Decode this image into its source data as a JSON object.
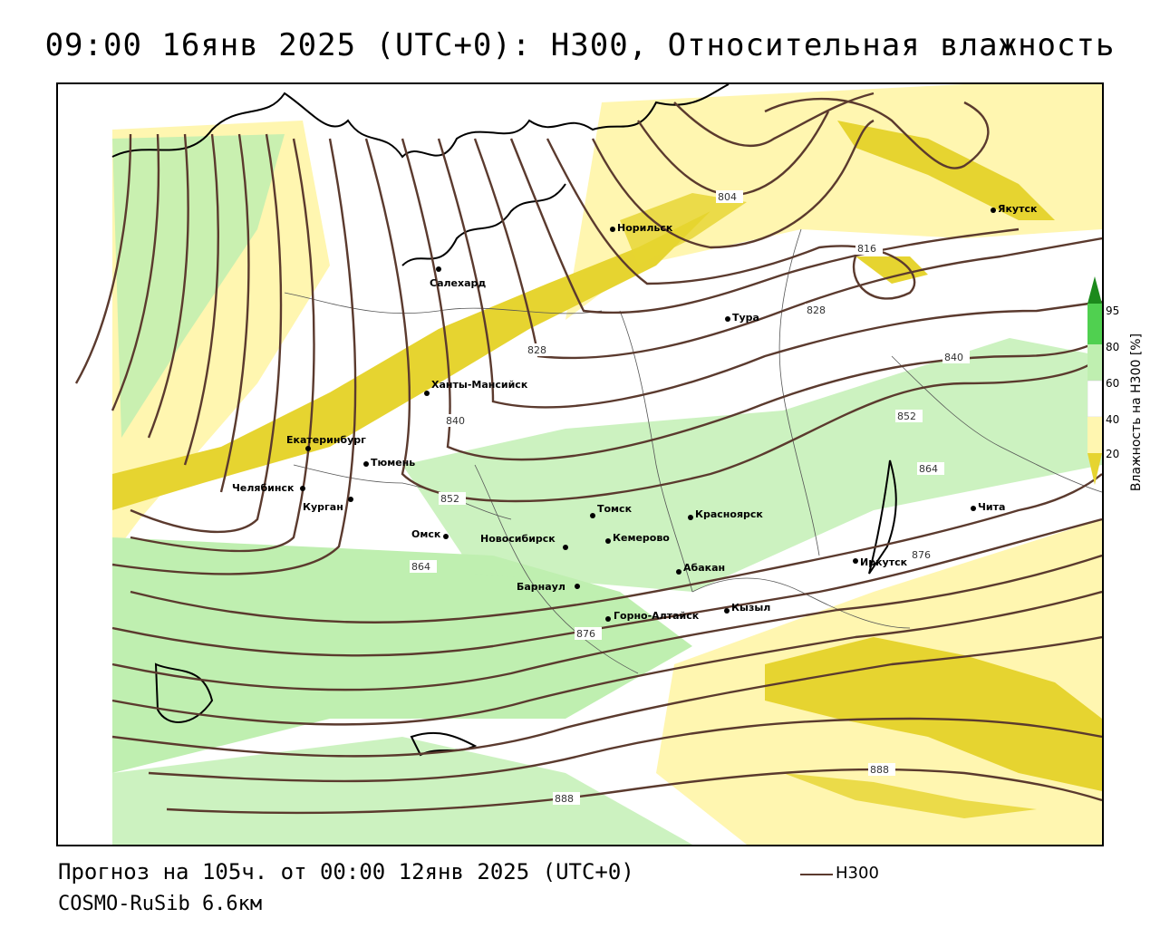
{
  "title": "09:00 16янв 2025 (UTC+0): H300, Относительная влажность",
  "forecast_line": "Прогноз на 105ч. от 00:00 12янв 2025 (UTC+0)",
  "model_line": "COSMO-RuSib 6.6км",
  "legend": {
    "title": "Влажность на H300 [%]",
    "ticks": [
      "95",
      "80",
      "60",
      "40",
      "20"
    ],
    "line_label": "H300",
    "line_color": "#5b3a2e",
    "colors": {
      "c95": "#1c8a1c",
      "c80": "#50d050",
      "c60": "#bfefb0",
      "c50": "#ffffff",
      "c40": "#fff6b0",
      "c20": "#e6d430"
    }
  },
  "cities": [
    {
      "name": "Норильск"
    },
    {
      "name": "Якутск"
    },
    {
      "name": "Салехард"
    },
    {
      "name": "Тура"
    },
    {
      "name": "Ханты-Мансийск"
    },
    {
      "name": "Екатеринбург"
    },
    {
      "name": "Тюмень"
    },
    {
      "name": "Челябинск"
    },
    {
      "name": "Курган"
    },
    {
      "name": "Омск"
    },
    {
      "name": "Новосибирск"
    },
    {
      "name": "Томск"
    },
    {
      "name": "Красноярск"
    },
    {
      "name": "Кемерово"
    },
    {
      "name": "Абакан"
    },
    {
      "name": "Барнаул"
    },
    {
      "name": "Горно-Алтайск"
    },
    {
      "name": "Кызыл"
    },
    {
      "name": "Иркутск"
    },
    {
      "name": "Чита"
    }
  ],
  "contour_labels": [
    "804",
    "816",
    "828",
    "828",
    "840",
    "840",
    "852",
    "852",
    "864",
    "864",
    "876",
    "876",
    "888",
    "888"
  ]
}
